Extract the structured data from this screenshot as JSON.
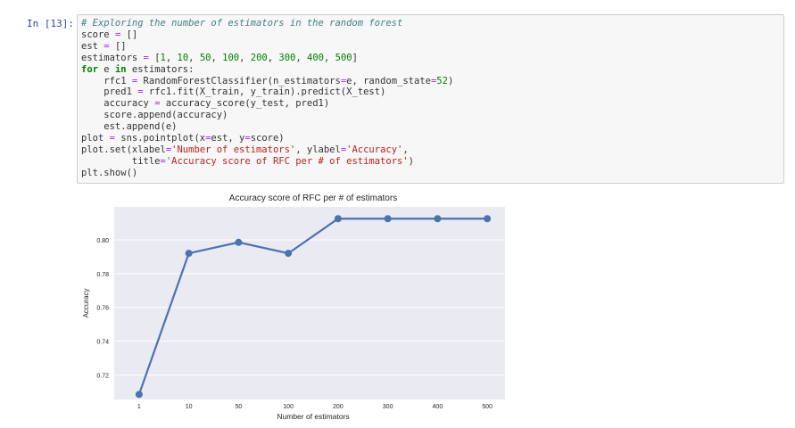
{
  "cell": {
    "prompt": "In [13]:",
    "code": [
      "# Exploring the number of estimators in the random forest",
      "score = []",
      "est = []",
      "estimators = [1, 10, 50, 100, 200, 300, 400, 500]",
      "for e in estimators:",
      "    rfc1 = RandomForestClassifier(n_estimators=e, random_state=52)",
      "    pred1 = rfc1.fit(X_train, y_train).predict(X_test)",
      "    accuracy = accuracy_score(y_test, pred1)",
      "    score.append(accuracy)",
      "    est.append(e)",
      "plot = sns.pointplot(x=est, y=score)",
      "plot.set(xlabel='Number of estimators', ylabel='Accuracy',",
      "         title='Accuracy score of RFC per # of estimators')",
      "plt.show()"
    ]
  },
  "chart_data": {
    "type": "line",
    "title": "Accuracy score of RFC per # of estimators",
    "xlabel": "Number of estimators",
    "ylabel": "Accuracy",
    "categories": [
      "1",
      "10",
      "50",
      "100",
      "200",
      "300",
      "400",
      "500"
    ],
    "values": [
      0.7085,
      0.792,
      0.7985,
      0.792,
      0.8125,
      0.8125,
      0.8125,
      0.8125
    ],
    "ylim": [
      0.7055,
      0.8195
    ],
    "yticks": [
      "0.72",
      "0.74",
      "0.76",
      "0.78",
      "0.80"
    ],
    "ytick_values": [
      0.72,
      0.74,
      0.76,
      0.78,
      0.8
    ],
    "grid": true,
    "line_color": "#4c72b0",
    "background_color": "#eaeaf2"
  }
}
